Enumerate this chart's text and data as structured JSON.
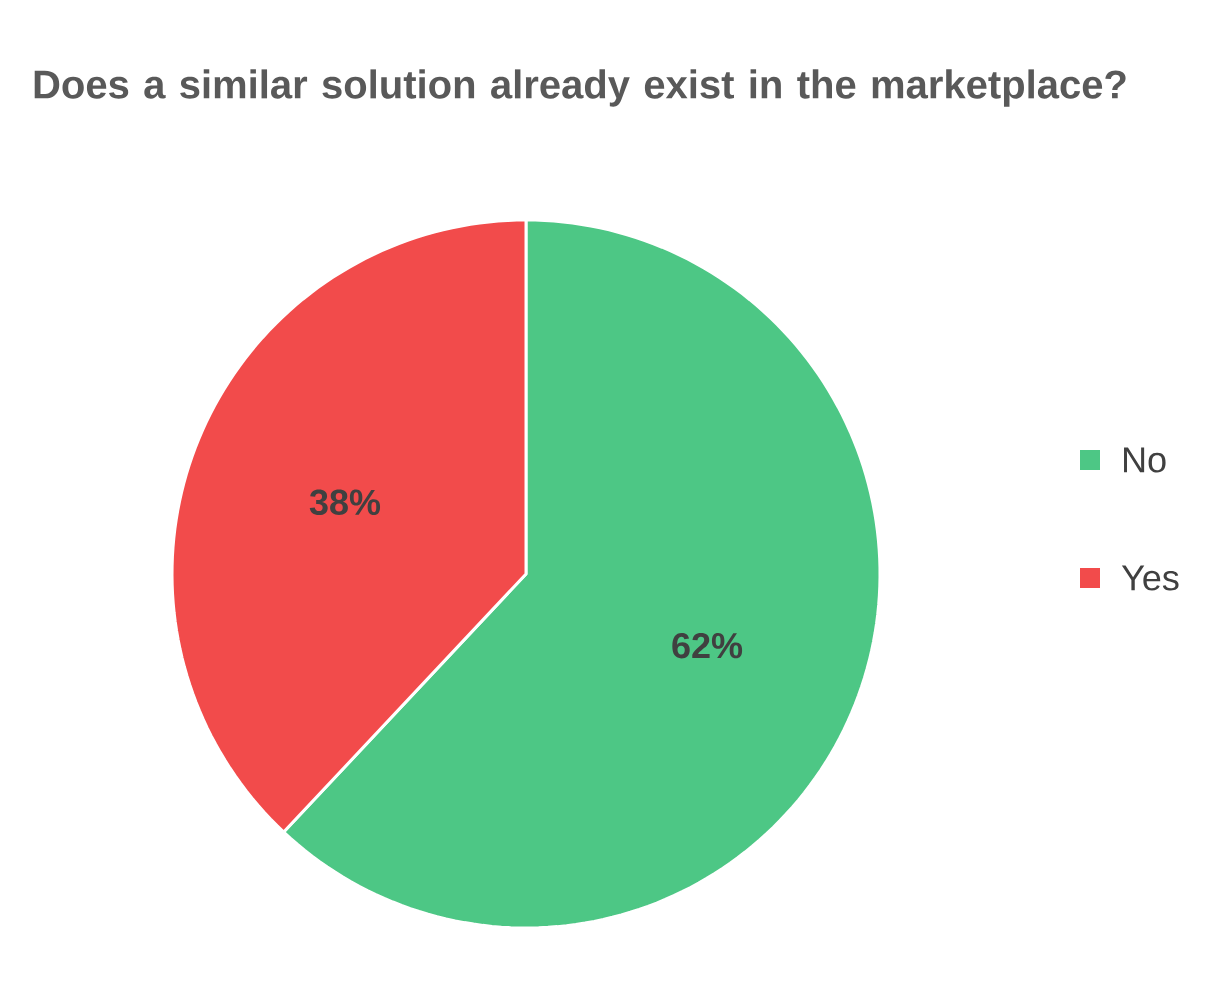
{
  "chart_data": {
    "type": "pie",
    "title": "Does a similar solution already exist in the marketplace?",
    "categories": [
      "No",
      "Yes"
    ],
    "values": [
      62,
      38
    ],
    "colors": [
      "#4dc785",
      "#f24b4b"
    ],
    "value_labels": [
      "62%",
      "38%"
    ],
    "legend": "right"
  }
}
